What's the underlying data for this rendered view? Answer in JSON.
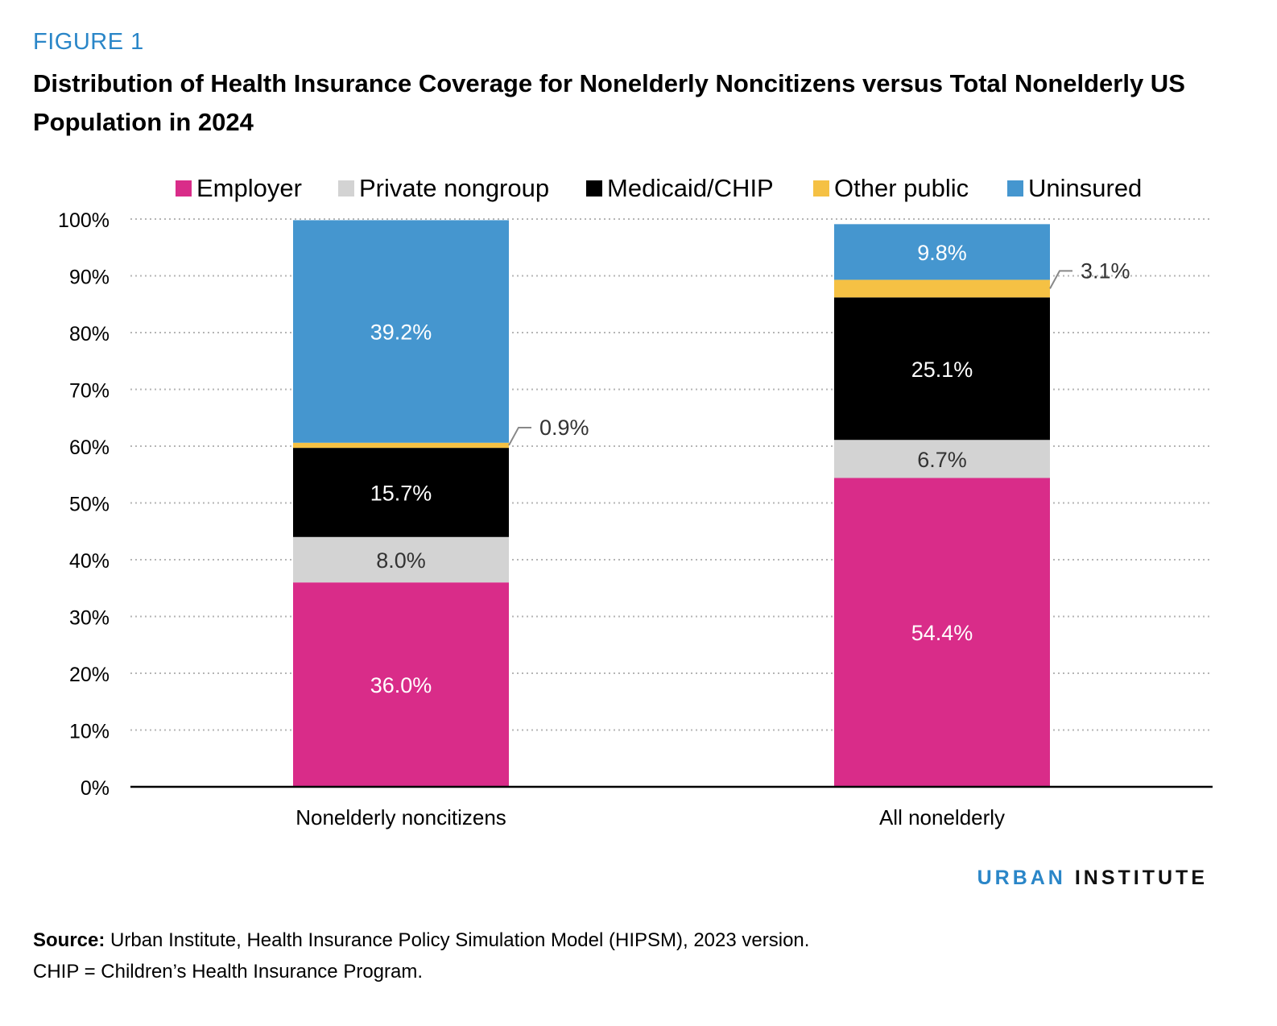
{
  "figure_label": "FIGURE 1",
  "title": "Distribution of Health Insurance Coverage for Nonelderly Noncitizens versus Total Nonelderly US Population in 2024",
  "chart_data": {
    "type": "bar",
    "stacked": true,
    "categories": [
      "Nonelderly noncitizens",
      "All nonelderly"
    ],
    "series": [
      {
        "name": "Employer",
        "color": "#d92c89",
        "values": [
          36.0,
          54.4
        ],
        "labels": [
          "36.0%",
          "54.4%"
        ],
        "label_color": "#ffffff"
      },
      {
        "name": "Private nongroup",
        "color": "#d3d3d3",
        "values": [
          8.0,
          6.7
        ],
        "labels": [
          "8.0%",
          "6.7%"
        ],
        "label_color": "#333333"
      },
      {
        "name": "Medicaid/CHIP",
        "color": "#000000",
        "values": [
          15.7,
          25.1
        ],
        "labels": [
          "15.7%",
          "25.1%"
        ],
        "label_color": "#ffffff"
      },
      {
        "name": "Other public",
        "color": "#f5c144",
        "values": [
          0.9,
          3.1
        ],
        "labels": [
          "0.9%",
          "3.1%"
        ],
        "label_color": "#333333",
        "callout": true
      },
      {
        "name": "Uninsured",
        "color": "#4596cf",
        "values": [
          39.2,
          9.8
        ],
        "labels": [
          "39.2%",
          "9.8%"
        ],
        "label_color": "#ffffff"
      }
    ],
    "y_ticks": [
      "0%",
      "10%",
      "20%",
      "30%",
      "40%",
      "50%",
      "60%",
      "70%",
      "80%",
      "90%",
      "100%"
    ],
    "ylim": [
      0,
      100
    ],
    "grid": "dotted horizontal",
    "legend": "top"
  },
  "brand": {
    "part1": "URBAN",
    "part2": "INSTITUTE"
  },
  "source": {
    "label": "Source:",
    "text": "Urban Institute, Health Insurance Policy Simulation Model (HIPSM), 2023 version.",
    "note": "CHIP = Children’s Health Insurance Program."
  }
}
